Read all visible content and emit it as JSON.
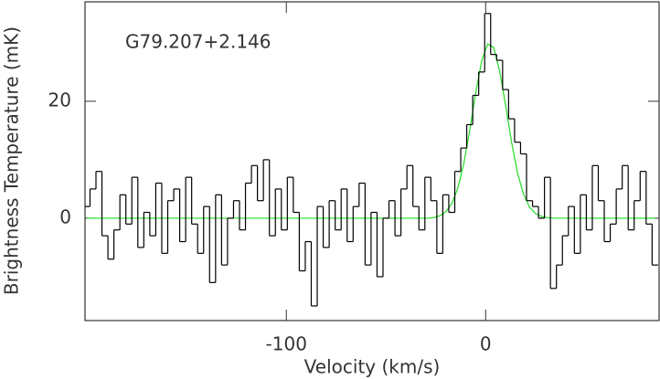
{
  "chart_data": {
    "type": "step",
    "annotation": "G79.207+2.146",
    "x_label": "Velocity (km/s)",
    "y_label": "Brightness Temperature (mK)",
    "x": [
      -200,
      -197,
      -194,
      -191,
      -188,
      -185,
      -182,
      -179,
      -176,
      -173,
      -170,
      -167,
      -164,
      -161,
      -158,
      -155,
      -152,
      -149,
      -146,
      -143,
      -140,
      -137,
      -134,
      -131,
      -128,
      -125,
      -122,
      -119,
      -116,
      -113,
      -110,
      -107,
      -104,
      -101,
      -98,
      -95,
      -92,
      -89,
      -86,
      -83,
      -80,
      -77,
      -74,
      -71,
      -68,
      -65,
      -62,
      -59,
      -56,
      -53,
      -50,
      -47,
      -44,
      -41,
      -38,
      -35,
      -32,
      -29,
      -26,
      -23,
      -20,
      -17,
      -14,
      -11,
      -8,
      -5,
      -2,
      1,
      4,
      7,
      10,
      13,
      16,
      19,
      22,
      25,
      28,
      31,
      34,
      37,
      40,
      43,
      46,
      49,
      52,
      55,
      58,
      61,
      64,
      67,
      70,
      73,
      76,
      79,
      82,
      85
    ],
    "series": [
      {
        "color": "#000000",
        "values": [
          2,
          5,
          8,
          -3,
          -7,
          -2,
          4,
          -1,
          7,
          -5,
          1,
          -3,
          6,
          -6,
          3,
          5,
          -4,
          7,
          -1,
          -6,
          2,
          -11,
          4,
          -8,
          0,
          3,
          -2,
          6,
          9,
          3,
          10,
          -3,
          5,
          -2,
          7,
          1,
          -9,
          -4,
          -15,
          2,
          -5,
          3,
          -2,
          5,
          -4,
          2,
          6,
          -8,
          1,
          -10,
          0,
          3,
          -3,
          5,
          9,
          2,
          -2,
          7,
          3,
          -6,
          4,
          1,
          8,
          12,
          16,
          21,
          25,
          35,
          28,
          27,
          22,
          17,
          13,
          11,
          3,
          2,
          0,
          7,
          -12,
          -8,
          -3,
          2,
          -6,
          4,
          -2,
          9,
          3,
          -4,
          -1,
          5,
          9,
          -2,
          3,
          8,
          -1,
          -8
        ]
      },
      {
        "color": "#22dd22",
        "values": [
          0,
          0,
          0,
          0,
          0,
          0,
          0,
          0,
          0,
          0,
          0,
          0,
          0,
          0,
          0,
          0,
          0,
          0,
          0,
          0,
          0,
          0,
          0,
          0,
          0,
          0,
          0,
          0,
          0,
          0,
          0,
          0,
          0,
          0,
          0,
          0,
          0,
          0,
          0,
          0,
          0,
          0,
          0,
          0,
          0,
          0,
          0,
          0,
          0,
          0,
          0,
          0,
          0,
          0,
          0,
          0,
          0,
          0,
          0.1,
          0.4,
          1.1,
          2.5,
          5.1,
          9.3,
          15.0,
          21.4,
          26.9,
          29.8,
          29.2,
          25.2,
          19.3,
          13.0,
          7.7,
          4.1,
          1.9,
          0.8,
          0.3,
          0.1,
          0,
          0,
          0,
          0,
          0,
          0,
          0,
          0,
          0,
          0,
          0,
          0,
          0,
          0,
          0,
          0,
          0,
          0
        ]
      }
    ],
    "xlim": [
      -201,
      87
    ],
    "ylim": [
      -17.5,
      37
    ],
    "xticks": [
      -100,
      0
    ],
    "yticks": [
      0,
      20
    ]
  }
}
